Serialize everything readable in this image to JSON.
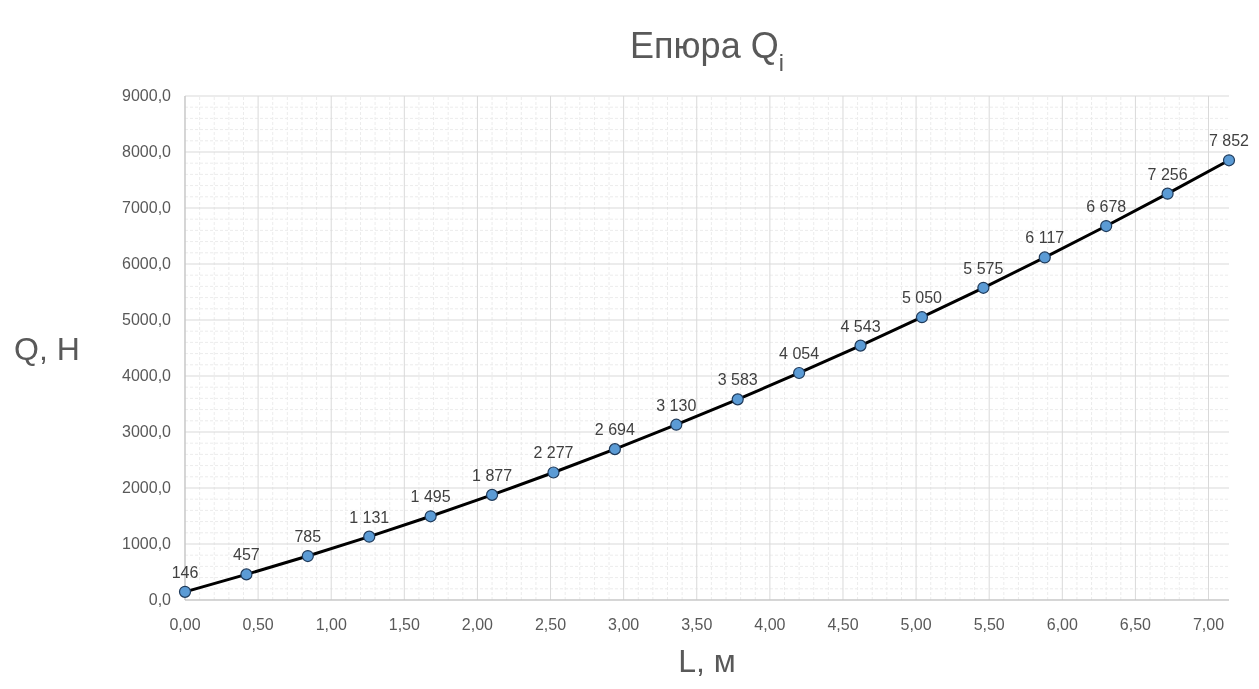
{
  "chart_data": {
    "type": "line",
    "title": "Епюра Q$_{i}$",
    "xlabel": "L, м",
    "ylabel": "Q, Н",
    "x": [
      0,
      0.42,
      0.84,
      1.26,
      1.68,
      2.1,
      2.52,
      2.94,
      3.36,
      3.78,
      4.2,
      4.62,
      5.04,
      5.46,
      5.88,
      6.3,
      6.72,
      7.14
    ],
    "series": [
      {
        "color": "#000000",
        "values": [
          146,
          457,
          785,
          1131,
          1495,
          1877,
          2277,
          2694,
          3130,
          3583,
          4054,
          4543,
          5050,
          5575,
          6117,
          6678,
          7256,
          7852
        ],
        "value_labels": [
          "146",
          "457",
          "785",
          "1 131",
          "1 495",
          "1 877",
          "2 277",
          "2 694",
          "3 130",
          "3 583",
          "4 054",
          "4 543",
          "5 050",
          "5 575",
          "6 117",
          "6 678",
          "7 256",
          "7 852"
        ]
      }
    ],
    "marker": "circle",
    "line_style": "solid",
    "grid": true,
    "xlim": [
      0,
      7.14
    ],
    "xticks": [
      {
        "value": 0,
        "label": "0,00"
      },
      {
        "value": 0.5,
        "label": "0,50"
      },
      {
        "value": 1,
        "label": "1,00"
      },
      {
        "value": 1.5,
        "label": "1,50"
      },
      {
        "value": 2,
        "label": "2,00"
      },
      {
        "value": 2.5,
        "label": "2,50"
      },
      {
        "value": 3,
        "label": "3,00"
      },
      {
        "value": 3.5,
        "label": "3,50"
      },
      {
        "value": 4,
        "label": "4,00"
      },
      {
        "value": 4.5,
        "label": "4,50"
      },
      {
        "value": 5,
        "label": "5,00"
      },
      {
        "value": 5.5,
        "label": "5,50"
      },
      {
        "value": 6,
        "label": "6,00"
      },
      {
        "value": 6.5,
        "label": "6,50"
      },
      {
        "value": 7,
        "label": "7,00"
      }
    ],
    "ylim": [
      0,
      9000
    ],
    "yticks": [
      {
        "value": 0,
        "label": "0,0"
      },
      {
        "value": 1000,
        "label": "1000,0"
      },
      {
        "value": 2000,
        "label": "2000,0"
      },
      {
        "value": 3000,
        "label": "3000,0"
      },
      {
        "value": 4000,
        "label": "4000,0"
      },
      {
        "value": 5000,
        "label": "5000,0"
      },
      {
        "value": 6000,
        "label": "6000,0"
      },
      {
        "value": 7000,
        "label": "7000,0"
      },
      {
        "value": 8000,
        "label": "8000,0"
      },
      {
        "value": 9000,
        "label": "9000,0"
      }
    ]
  }
}
